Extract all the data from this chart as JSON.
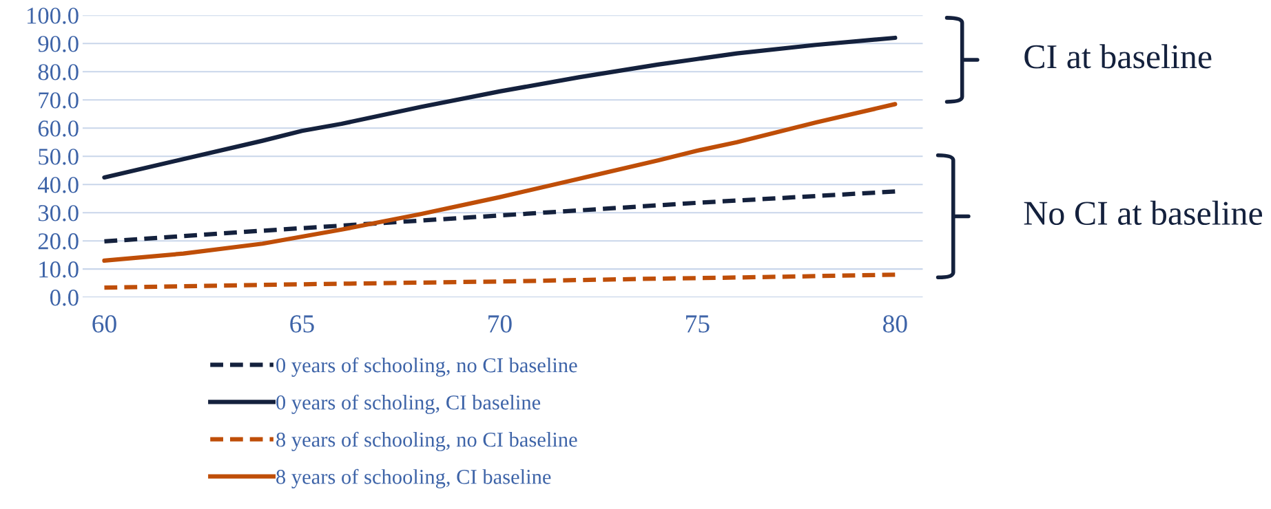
{
  "chart_data": {
    "type": "line",
    "x": [
      60,
      62,
      64,
      65,
      66,
      68,
      70,
      72,
      74,
      75,
      76,
      78,
      80
    ],
    "series": [
      {
        "name": "0 years of schooling, no CI baseline",
        "color": "#14213d",
        "line_style": "dashed",
        "values": [
          19.8,
          21.7,
          23.6,
          24.5,
          25.4,
          27.2,
          29.0,
          30.8,
          32.6,
          33.5,
          34.3,
          35.9,
          37.5
        ]
      },
      {
        "name": "0 years of scholing, CI baseline",
        "color": "#14213d",
        "line_style": "solid",
        "values": [
          42.5,
          49,
          55.5,
          59,
          61.5,
          67.5,
          73,
          78,
          82.5,
          84.5,
          86.5,
          89.5,
          92
        ]
      },
      {
        "name": "8 years of schooling, no CI baseline",
        "color": "#bf4e08",
        "line_style": "dashed",
        "values": [
          3.4,
          3.9,
          4.4,
          4.6,
          4.8,
          5.2,
          5.6,
          6.1,
          6.6,
          6.8,
          7.0,
          7.5,
          8.0
        ]
      },
      {
        "name": "8 years of schooling, CI baseline",
        "color": "#bf4e08",
        "line_style": "solid",
        "values": [
          13,
          15.5,
          19,
          21.5,
          24,
          29.5,
          35.5,
          42,
          48.5,
          52,
          55,
          62,
          68.5
        ]
      }
    ],
    "xlim": [
      59.45,
      80.7
    ],
    "xticks": [
      60,
      65,
      70,
      75,
      80
    ],
    "ylim": [
      0,
      100
    ],
    "yticks": [
      {
        "value": 0,
        "label": "0.0"
      },
      {
        "value": 10,
        "label": "10.0"
      },
      {
        "value": 20,
        "label": "20.0"
      },
      {
        "value": 30,
        "label": "30.0"
      },
      {
        "value": 40,
        "label": "40.0"
      },
      {
        "value": 50,
        "label": "50.0"
      },
      {
        "value": 60,
        "label": "60.0"
      },
      {
        "value": 70,
        "label": "70.0"
      },
      {
        "value": 80,
        "label": "80.0"
      },
      {
        "value": 90,
        "label": "90.0"
      },
      {
        "value": 100,
        "label": "100.0"
      }
    ],
    "grid": "y",
    "legend": "bottom",
    "marker": "none",
    "annotations": [
      "CI at baseline",
      "No CI at baseline"
    ]
  }
}
